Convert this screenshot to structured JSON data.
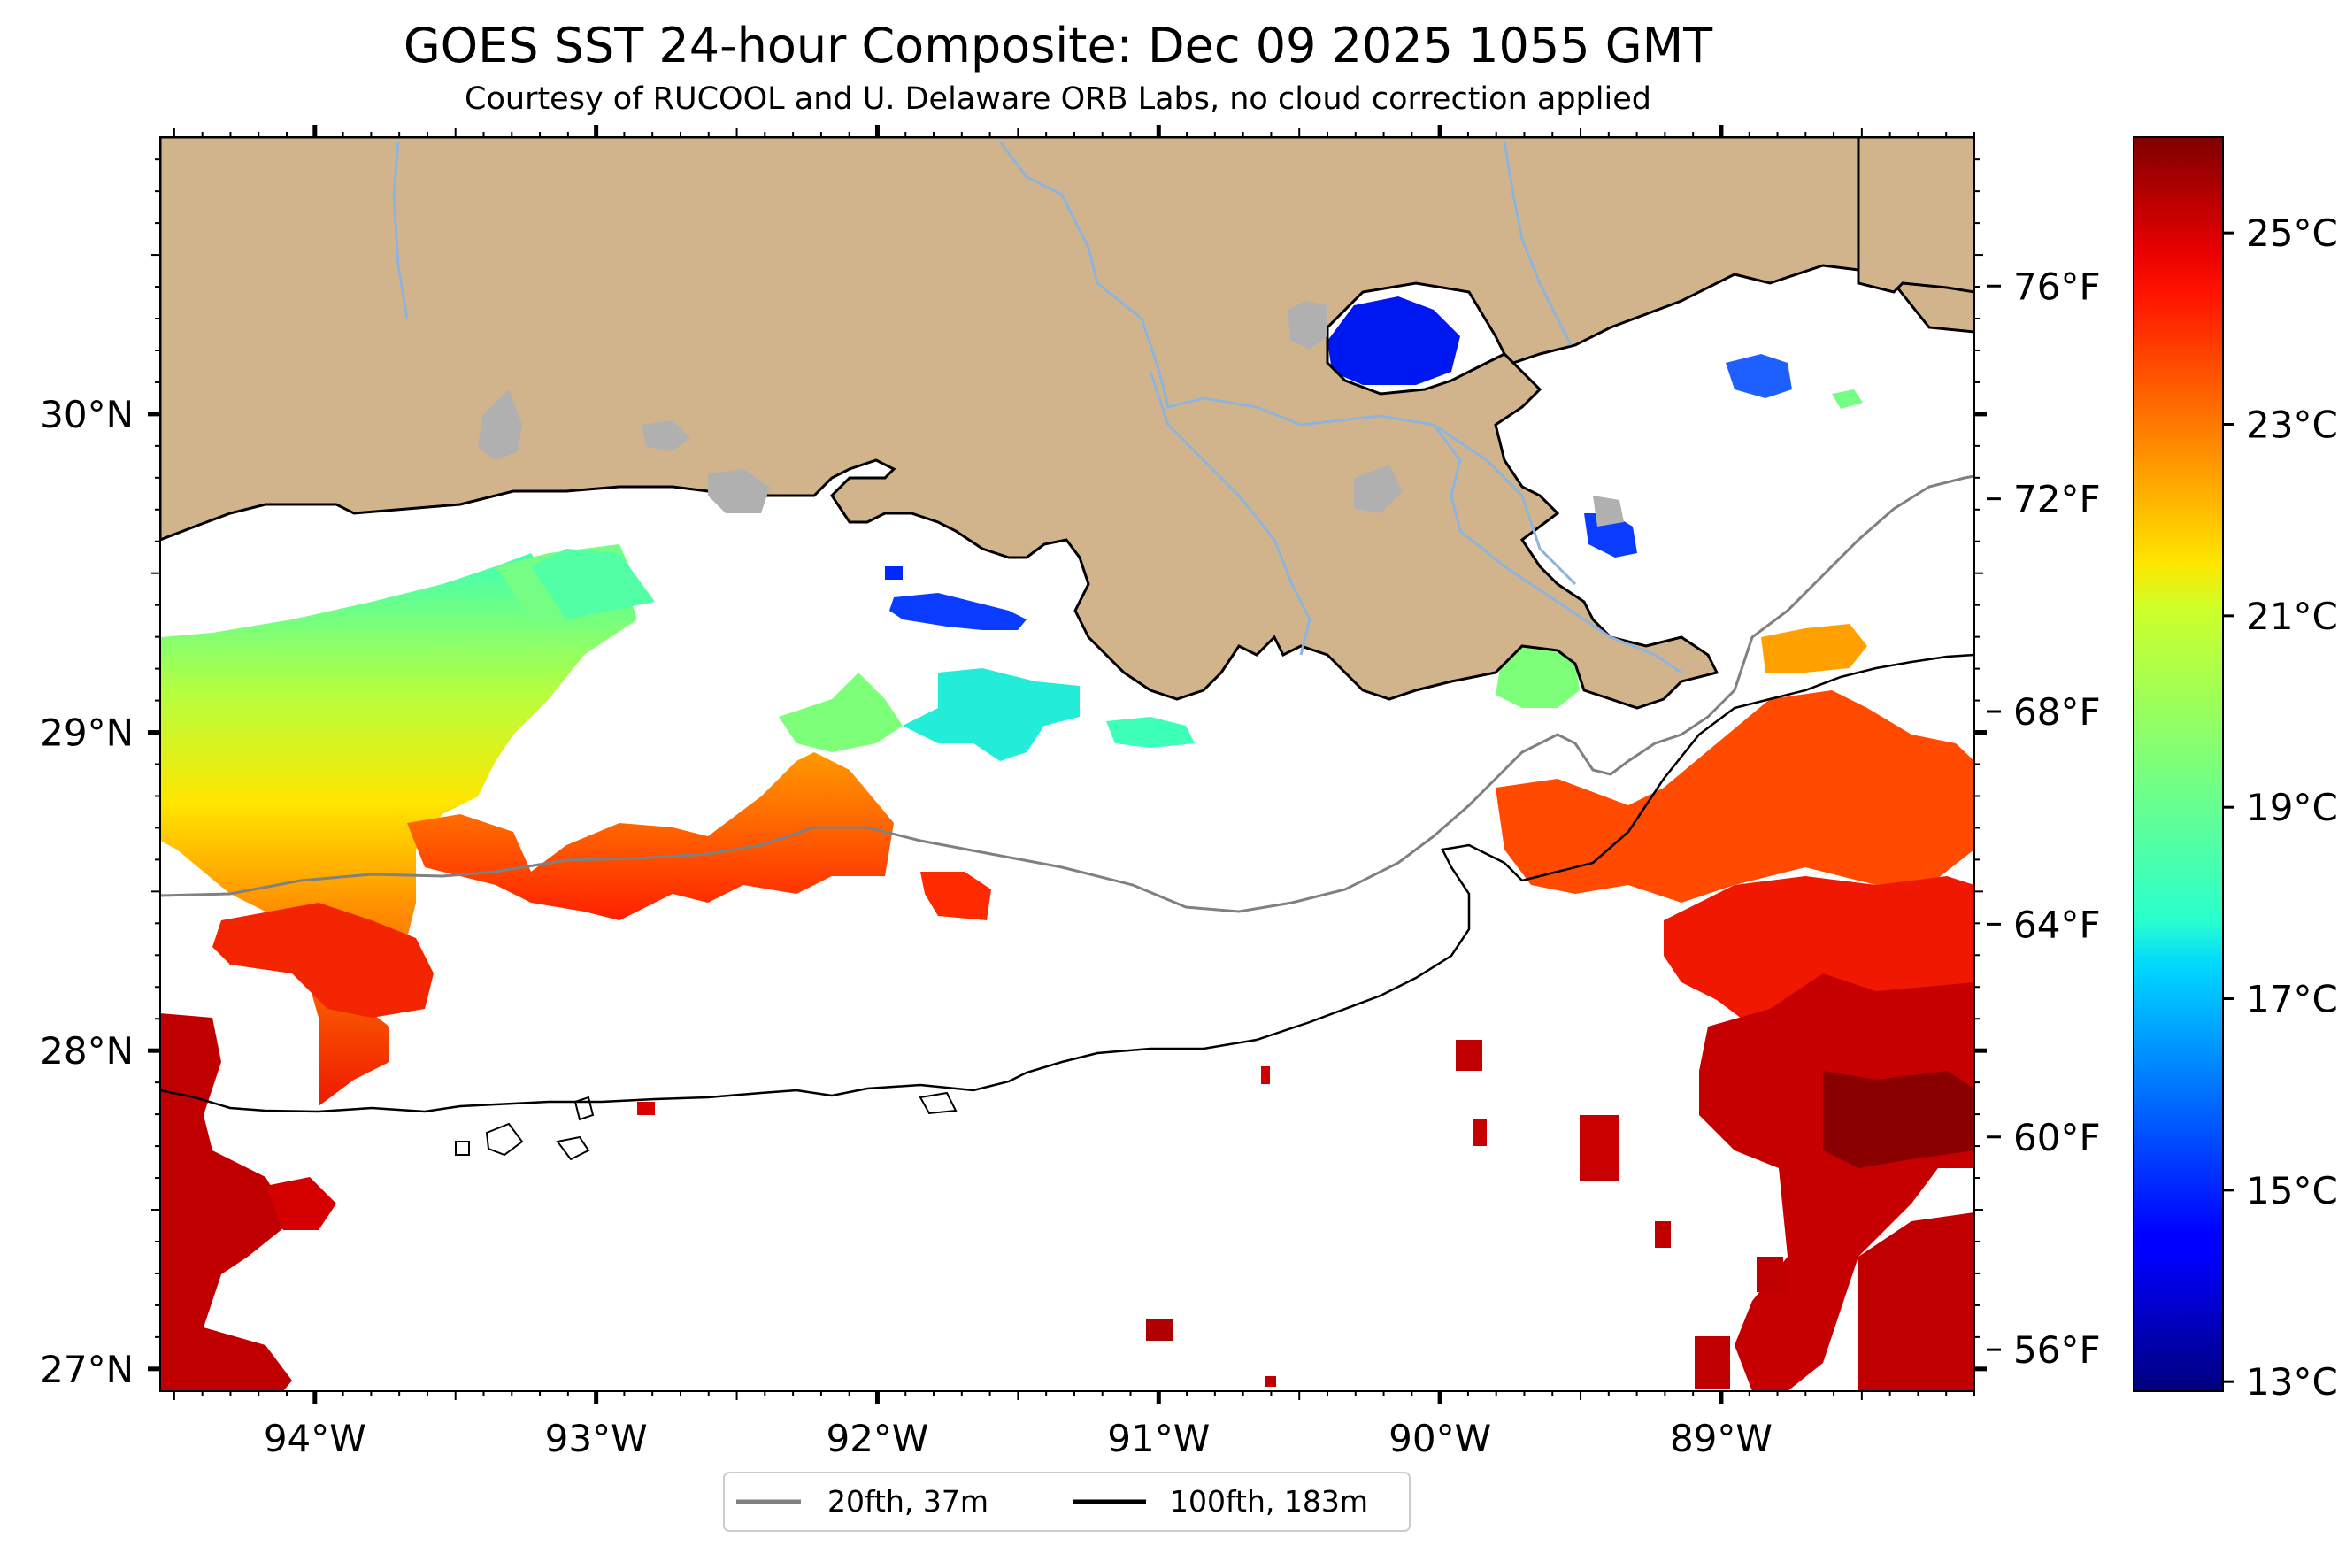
{
  "title": "GOES SST 24-hour Composite: Dec 09 2025 1055 GMT",
  "subtitle": "Courtesy of RUCOOL and U. Delaware ORB Labs, no cloud correction applied",
  "map": {
    "lon_range": [
      -94.55,
      -88.1
    ],
    "lat_range": [
      26.93,
      30.87
    ],
    "lon_ticks": [
      {
        "value": -94,
        "label": "94°W"
      },
      {
        "value": -93,
        "label": "93°W"
      },
      {
        "value": -92,
        "label": "92°W"
      },
      {
        "value": -91,
        "label": "91°W"
      },
      {
        "value": -90,
        "label": "90°W"
      },
      {
        "value": -89,
        "label": "89°W"
      }
    ],
    "lat_ticks": [
      {
        "value": 30,
        "label": "30°N"
      },
      {
        "value": 29,
        "label": "29°N"
      },
      {
        "value": 28,
        "label": "28°N"
      },
      {
        "value": 27,
        "label": "27°N"
      }
    ],
    "land_color": "#d2b48c",
    "lake_color": "#b0b0b0",
    "river_color": "#8fb4dc"
  },
  "legend": {
    "items": [
      {
        "label": "20fth, 37m",
        "color": "#808080"
      },
      {
        "label": "100fth, 183m",
        "color": "#000000"
      }
    ],
    "placement": "bottom-center"
  },
  "colorbar": {
    "colormap": "jet",
    "range_c": [
      12.9,
      26.0
    ],
    "celsius_ticks": [
      {
        "value": 25,
        "label": "25°C"
      },
      {
        "value": 23,
        "label": "23°C"
      },
      {
        "value": 21,
        "label": "21°C"
      },
      {
        "value": 19,
        "label": "19°C"
      },
      {
        "value": 17,
        "label": "17°C"
      },
      {
        "value": 15,
        "label": "15°C"
      },
      {
        "value": 13,
        "label": "13°C"
      }
    ],
    "fahrenheit_ticks": [
      {
        "value": 76,
        "label": "76°F"
      },
      {
        "value": 72,
        "label": "72°F"
      },
      {
        "value": 68,
        "label": "68°F"
      },
      {
        "value": 64,
        "label": "64°F"
      },
      {
        "value": 60,
        "label": "60°F"
      },
      {
        "value": 56,
        "label": "56°F"
      }
    ]
  }
}
